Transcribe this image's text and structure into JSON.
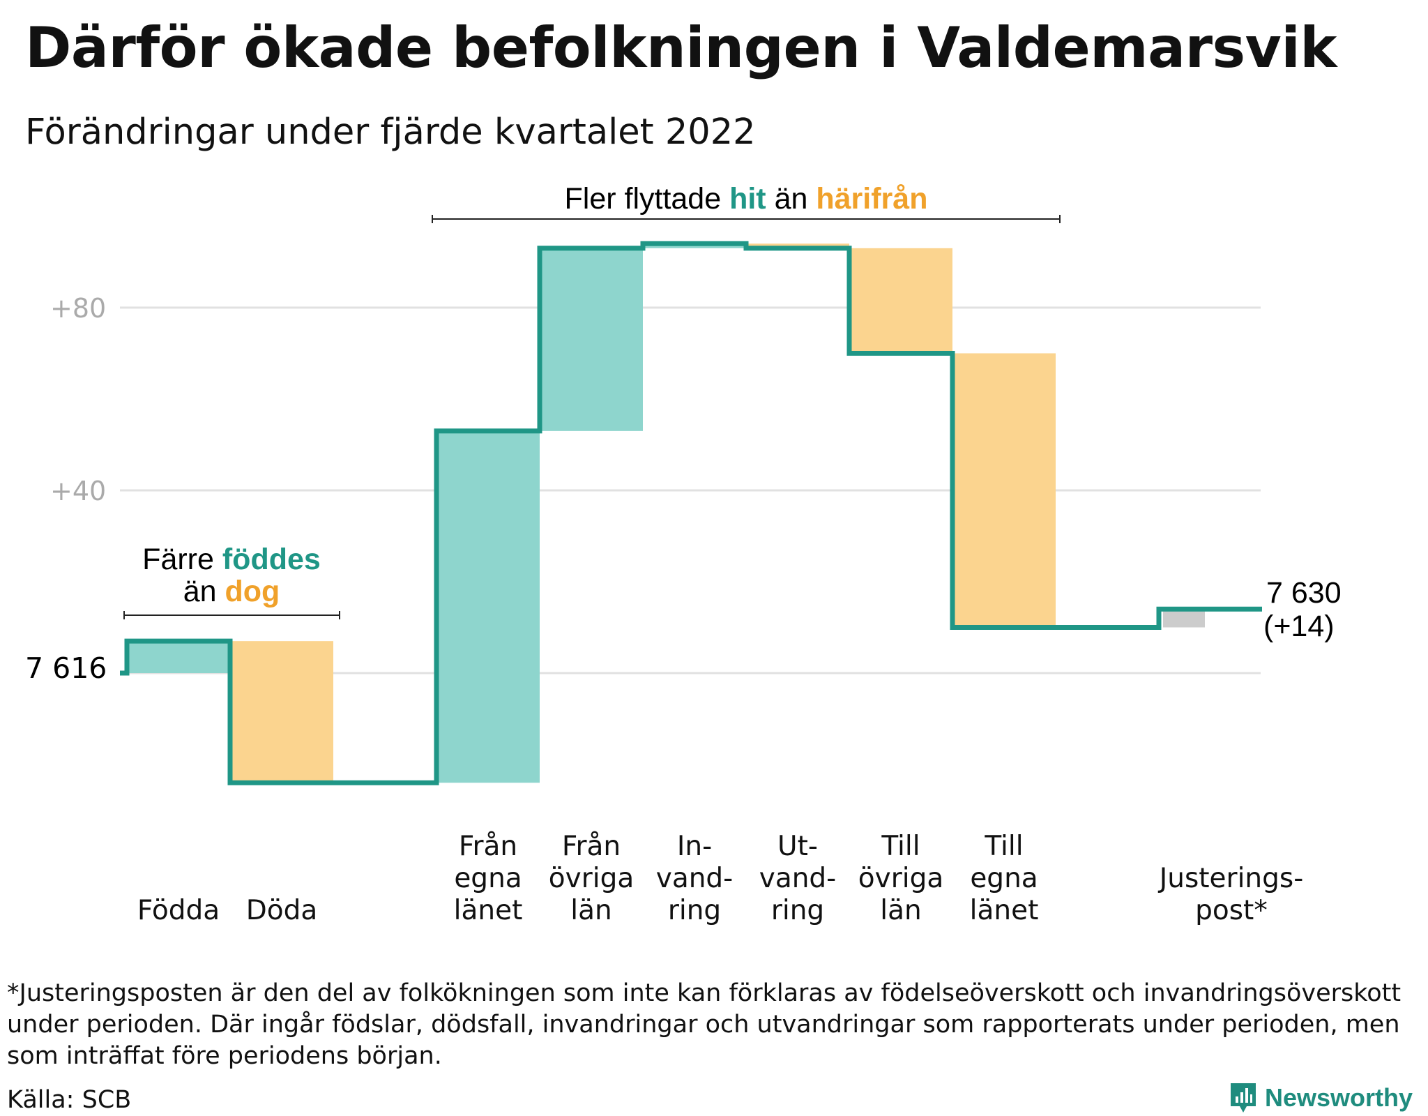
{
  "header": {
    "title": "Därför ökade befolkningen i Valdemarsvik",
    "subtitle": "Förändringar under fjärde kvartalet 2022"
  },
  "annotations": {
    "births_deaths": {
      "line1_a": "Färre ",
      "line1_b": "föddes",
      "line2_a": "än ",
      "line2_b": "dog"
    },
    "migration": {
      "part1": "Fler flyttade ",
      "part2": "hit",
      "part3": " än ",
      "part4": "härifrån"
    },
    "start_label": "7 616",
    "end_label_line1": "7 630",
    "end_label_line2": "(+14)"
  },
  "chart_data": {
    "type": "waterfall",
    "start_value": 7616,
    "end_value": 7630,
    "y_ticks": [
      {
        "value": 80,
        "label": "+80"
      },
      {
        "value": 40,
        "label": "+40"
      },
      {
        "value": 0,
        "label": ""
      }
    ],
    "ylim": [
      -30,
      95
    ],
    "grid": true,
    "steps": [
      {
        "labels": [
          "Födda"
        ],
        "delta": 7,
        "kind": "positive"
      },
      {
        "labels": [
          "Döda"
        ],
        "delta": -31,
        "kind": "negative"
      },
      {
        "labels": [],
        "delta": 0,
        "kind": "gap"
      },
      {
        "labels": [
          "Från",
          "egna",
          "länet"
        ],
        "delta": 77,
        "kind": "positive"
      },
      {
        "labels": [
          "Från",
          "övriga",
          "län"
        ],
        "delta": 40,
        "kind": "positive"
      },
      {
        "labels": [
          "In-",
          "vand-",
          "ring"
        ],
        "delta": 1,
        "kind": "positive"
      },
      {
        "labels": [
          "Ut-",
          "vand-",
          "ring"
        ],
        "delta": -1,
        "kind": "negative"
      },
      {
        "labels": [
          "Till",
          "övriga",
          "län"
        ],
        "delta": -23,
        "kind": "negative"
      },
      {
        "labels": [
          "Till",
          "egna",
          "länet"
        ],
        "delta": -60,
        "kind": "negative"
      },
      {
        "labels": [],
        "delta": 0,
        "kind": "gap"
      },
      {
        "labels": [
          "Justerings-",
          "post*"
        ],
        "delta": 4,
        "kind": "neutral"
      }
    ],
    "colors": {
      "positive": "#8ed5cd",
      "negative": "#fbd48f",
      "neutral": "#cccccc",
      "line": "#1f9686",
      "teal_text": "#1f9686",
      "orange_text": "#f0a12a",
      "grid": "#e1e1e1",
      "tick_text": "#aaaaaa"
    }
  },
  "footer": {
    "footnote": "*Justeringsposten är den del av folkökningen som inte kan förklaras av födelseöverskott och invandringsöverskott under perioden. Där ingår födslar, dödsfall, invandringar och utvandringar som rapporterats under perioden, men som inträffat före periodens början.",
    "source": "Källa: SCB",
    "brand": "Newsworthy"
  }
}
